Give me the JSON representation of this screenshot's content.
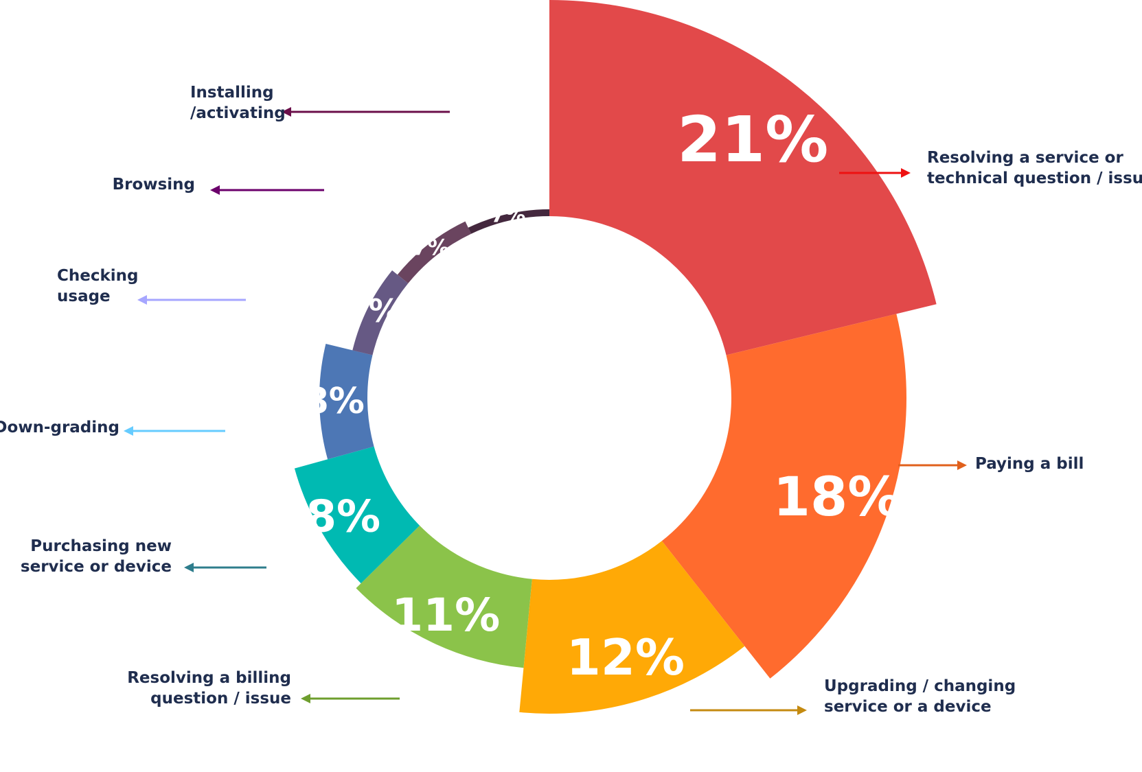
{
  "chart_data": {
    "type": "pie",
    "variant": "donut",
    "series": [
      {
        "label": "Resolving a service or technical question / issue",
        "value": 21,
        "value_label": "21%",
        "color": "#E2494A",
        "arrow_color": "#EE1111"
      },
      {
        "label": "Paying a bill",
        "value": 18,
        "value_label": "18%",
        "color": "#FF6B2E",
        "arrow_color": "#E0601C"
      },
      {
        "label": "Upgrading / changing service or a device",
        "value": 12,
        "value_label": "12%",
        "color": "#FFA906",
        "arrow_color": "#C48A10"
      },
      {
        "label": "Resolving a billing question / issue",
        "value": 11,
        "value_label": "11%",
        "color": "#8BC34A",
        "arrow_color": "#6E9E2E"
      },
      {
        "label": "Purchasing new service or device",
        "value": 8,
        "value_label": "8%",
        "color": "#00BAB2",
        "arrow_color": "#2E7D8C"
      },
      {
        "label": "Down-grading",
        "value": 8,
        "value_label": "8%",
        "color": "#4D77B5",
        "arrow_color": "#66CCFF"
      },
      {
        "label": "Checking usage",
        "value": 7,
        "value_label": "7%",
        "color": "#665984",
        "arrow_color": "#A6A6FF"
      },
      {
        "label": "Browsing",
        "value": 7,
        "value_label": "7%",
        "color": "#6A445F",
        "arrow_color": "#6B006B"
      },
      {
        "label": "Installing /activating",
        "value": 7,
        "value_label": "7%",
        "color": "#44283E",
        "arrow_color": "#6B0F4A"
      }
    ]
  }
}
